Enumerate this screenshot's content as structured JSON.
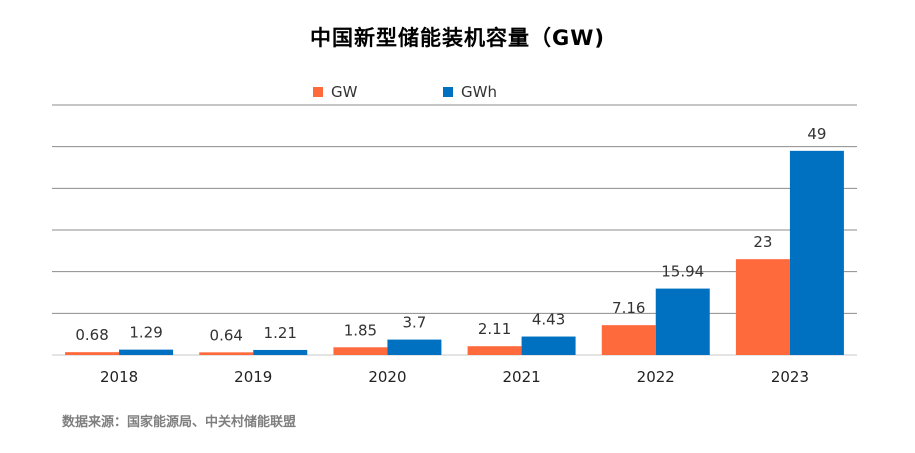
{
  "title": "中国新型储能装机容量（GW)",
  "source": "数据来源：国家能源局、中关村储能联盟",
  "colors": {
    "gw": "#FF6A3D",
    "gwh": "#0070C0",
    "grid": "#8c8c8c"
  },
  "chart_data": {
    "type": "bar",
    "categories": [
      "2018",
      "2019",
      "2020",
      "2021",
      "2022",
      "2023"
    ],
    "series": [
      {
        "name": "GW",
        "values": [
          0.68,
          0.64,
          1.85,
          2.11,
          7.16,
          23
        ]
      },
      {
        "name": "GWh",
        "values": [
          1.29,
          1.21,
          3.7,
          4.43,
          15.94,
          49
        ]
      }
    ],
    "value_labels": [
      [
        "0.68",
        "0.64",
        "1.85",
        "2.11",
        "7.16",
        "23"
      ],
      [
        "1.29",
        "1.21",
        "3.7",
        "4.43",
        "15.94",
        "49"
      ]
    ],
    "ylim": [
      0,
      60
    ],
    "grid": true,
    "legend_position": "top-center",
    "xlabel": "",
    "ylabel": ""
  }
}
